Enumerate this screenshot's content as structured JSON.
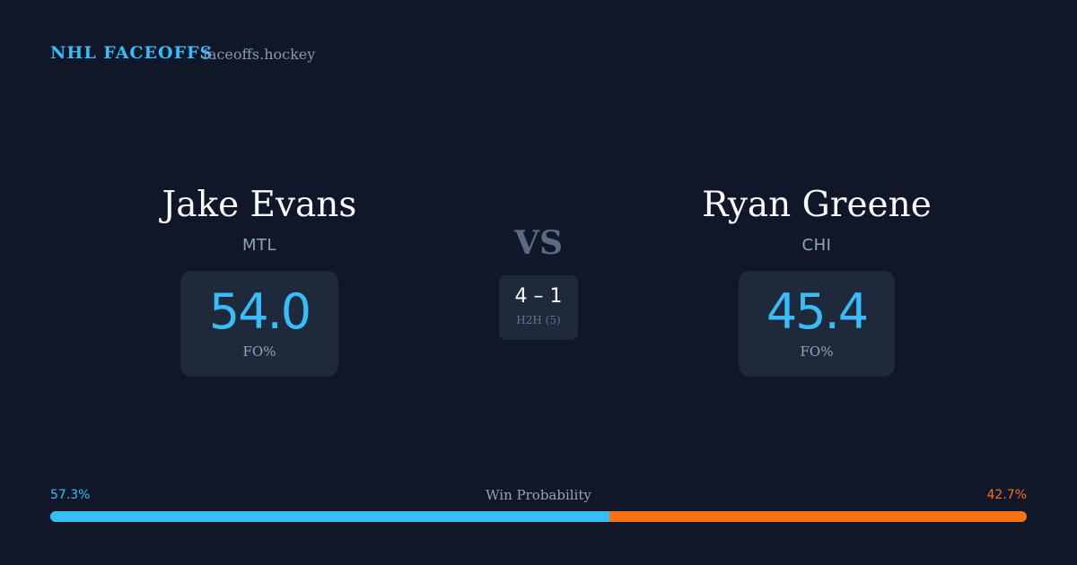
{
  "header": {
    "title": "NHL FACEOFFS",
    "site": "faceoffs.hockey"
  },
  "players": [
    {
      "name": "Jake Evans",
      "team": "MTL",
      "fo_pct": "54.0",
      "fo_label": "FO%"
    },
    {
      "name": "Ryan Greene",
      "team": "CHI",
      "fo_pct": "45.4",
      "fo_label": "FO%"
    }
  ],
  "vs": "VS",
  "h2h": {
    "score": "4 – 1",
    "label": "H2H (5)"
  },
  "win_probability": {
    "label": "Win Probability",
    "home": {
      "value": 57.3,
      "label": "57.3%",
      "color": "#38bdf8"
    },
    "away": {
      "value": 42.7,
      "label": "42.7%",
      "color": "#f97316"
    }
  }
}
